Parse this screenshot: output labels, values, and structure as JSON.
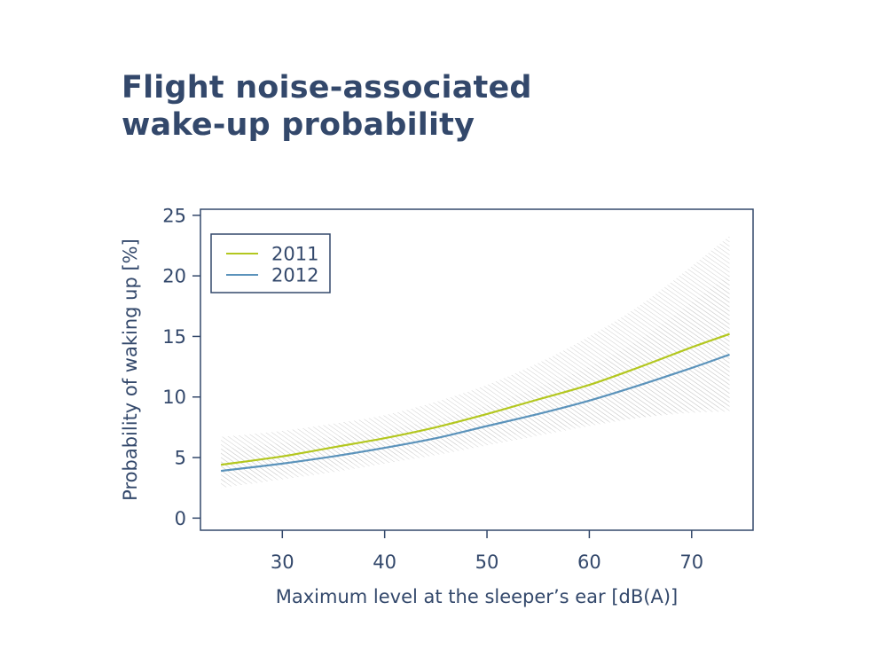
{
  "title_lines": [
    "Flight noise-associated",
    "wake-up probability"
  ],
  "colors": {
    "text": "#33486b",
    "axis": "#33486b",
    "series_2011": "#b3c71f",
    "series_2012": "#5b93bb",
    "confidence_band": "#c8c8c8"
  },
  "chart_data": {
    "type": "line",
    "title": "Flight noise-associated wake-up probability",
    "xlabel": "Maximum level at the sleeper’s ear [dB(A)]",
    "ylabel": "Probability of waking up [%]",
    "xlim": [
      22,
      76
    ],
    "ylim": [
      -1,
      25.5
    ],
    "xticks": [
      30,
      40,
      50,
      60,
      70
    ],
    "yticks": [
      0,
      5,
      10,
      15,
      20,
      25
    ],
    "grid": false,
    "legend_position": "top-left",
    "series": [
      {
        "name": "2011",
        "color": "#b3c71f",
        "x": [
          24,
          30,
          35,
          40,
          45,
          50,
          55,
          60,
          65,
          70,
          73.7
        ],
        "y": [
          4.4,
          5.1,
          5.85,
          6.6,
          7.5,
          8.6,
          9.8,
          11.0,
          12.5,
          14.1,
          15.2
        ],
        "band_lower": [
          2.9,
          3.6,
          4.3,
          5.0,
          5.7,
          6.5,
          7.2,
          7.8,
          8.3,
          8.7,
          8.8
        ],
        "band_upper": [
          6.7,
          7.2,
          7.8,
          8.5,
          9.6,
          11.0,
          12.8,
          15.0,
          17.6,
          20.8,
          23.3
        ]
      },
      {
        "name": "2012",
        "color": "#5b93bb",
        "x": [
          24,
          30,
          35,
          40,
          45,
          50,
          55,
          60,
          65,
          70,
          73.7
        ],
        "y": [
          3.9,
          4.5,
          5.1,
          5.8,
          6.6,
          7.6,
          8.6,
          9.7,
          11.0,
          12.4,
          13.5
        ],
        "band_lower": [
          2.5,
          3.2,
          3.8,
          4.5,
          5.2,
          6.0,
          6.8,
          7.6,
          8.3,
          8.9,
          9.2
        ],
        "band_upper": [
          5.7,
          6.2,
          6.7,
          7.3,
          8.1,
          9.3,
          10.8,
          12.5,
          14.8,
          17.8,
          20.1
        ]
      }
    ]
  }
}
